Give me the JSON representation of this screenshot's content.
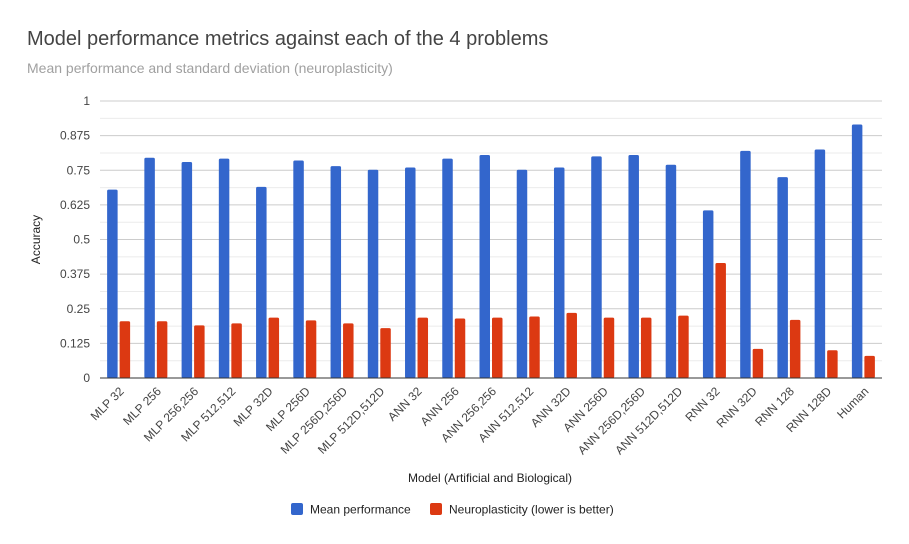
{
  "chart_data": {
    "type": "bar",
    "title": "Model performance metrics against each of the 4 problems",
    "subtitle": "Mean performance and standard deviation (neuroplasticity)",
    "xlabel": "Model (Artificial and Biological)",
    "ylabel": "Accuracy",
    "ylim": [
      0,
      1
    ],
    "yticks": [
      "0",
      "0.125",
      "0.25",
      "0.375",
      "0.5",
      "0.625",
      "0.75",
      "0.875",
      "1"
    ],
    "grid": true,
    "legend_position": "bottom",
    "categories": [
      "MLP 32",
      "MLP 256",
      "MLP 256,256",
      "MLP 512,512",
      "MLP 32D",
      "MLP 256D",
      "MLP 256D,256D",
      "MLP 512D,512D",
      "ANN 32",
      "ANN 256",
      "ANN 256,256",
      "ANN 512,512",
      "ANN 32D",
      "ANN 256D",
      "ANN 256D,256D",
      "ANN 512D,512D",
      "RNN 32",
      "RNN 32D",
      "RNN 128",
      "RNN 128D",
      "Human"
    ],
    "series": [
      {
        "name": "Mean performance",
        "color": "#3366cc",
        "values": [
          0.68,
          0.795,
          0.78,
          0.792,
          0.69,
          0.785,
          0.765,
          0.752,
          0.76,
          0.792,
          0.805,
          0.752,
          0.76,
          0.8,
          0.805,
          0.77,
          0.605,
          0.82,
          0.725,
          0.825,
          0.915
        ]
      },
      {
        "name": "Neuroplasticity (lower is better)",
        "color": "#dc3912",
        "values": [
          0.205,
          0.205,
          0.19,
          0.197,
          0.218,
          0.208,
          0.197,
          0.18,
          0.218,
          0.215,
          0.218,
          0.222,
          0.235,
          0.218,
          0.218,
          0.225,
          0.415,
          0.105,
          0.21,
          0.1,
          0.08
        ]
      }
    ]
  }
}
